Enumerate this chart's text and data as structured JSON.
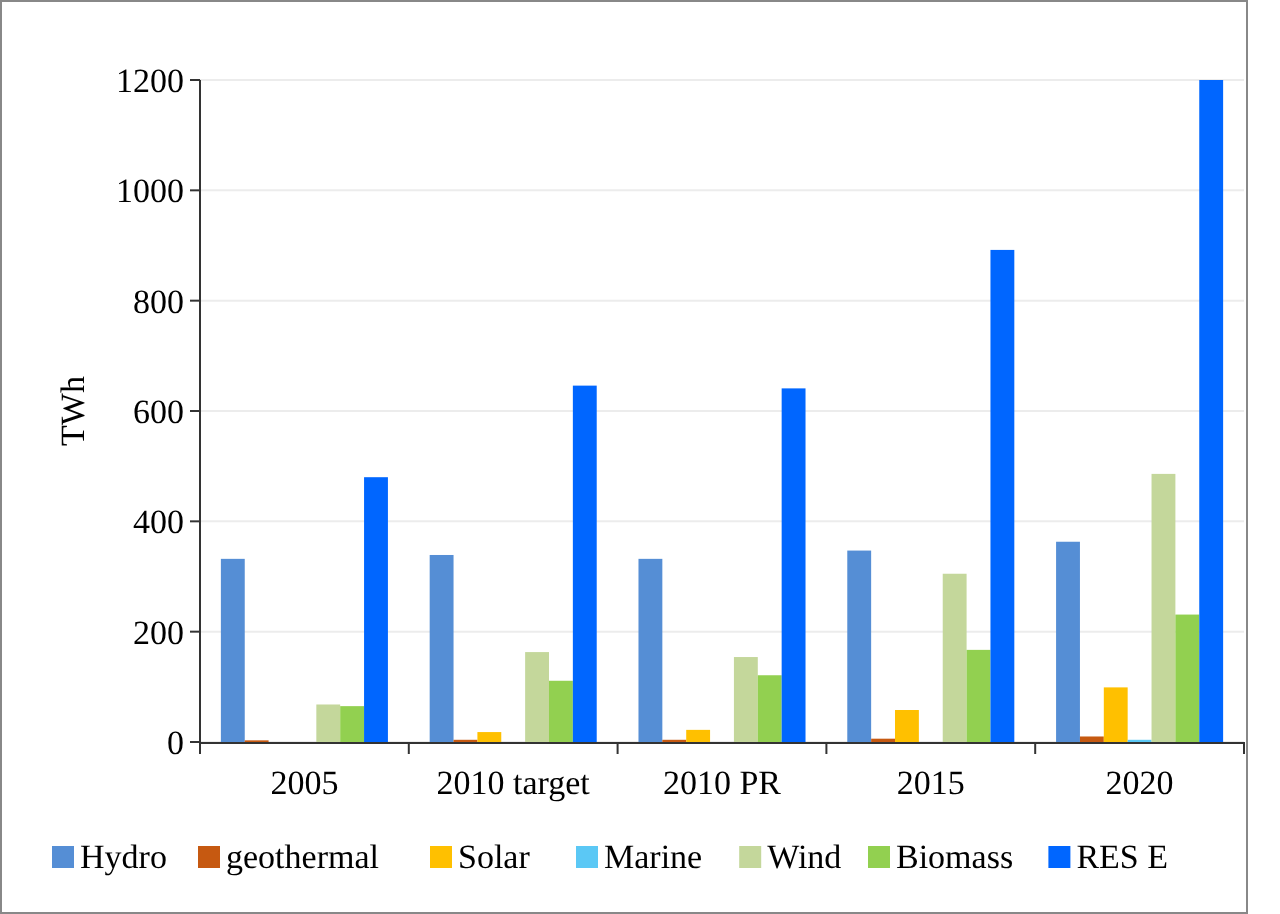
{
  "chart_data": {
    "type": "bar",
    "ylabel": "TWh",
    "categories": [
      "2005",
      "2010 target",
      "2010 PR",
      "2015",
      "2020"
    ],
    "series": [
      {
        "name": "Hydro",
        "color": "#558ed5",
        "values": [
          332,
          339,
          332,
          347,
          363
        ]
      },
      {
        "name": "geothermal",
        "color": "#c65911",
        "values": [
          3,
          4,
          4,
          6,
          10
        ]
      },
      {
        "name": "Solar",
        "color": "#ffc000",
        "values": [
          0,
          18,
          22,
          58,
          99
        ]
      },
      {
        "name": "Marine",
        "color": "#5bc8f5",
        "values": [
          0,
          0,
          0,
          0,
          4
        ]
      },
      {
        "name": "Wind",
        "color": "#c4d79b",
        "values": [
          68,
          163,
          154,
          305,
          486
        ]
      },
      {
        "name": "Biomass",
        "color": "#92d050",
        "values": [
          65,
          111,
          121,
          167,
          231
        ]
      },
      {
        "name": "RES E",
        "color": "#0066ff",
        "values": [
          480,
          646,
          641,
          892,
          1200
        ]
      }
    ],
    "ylim": [
      0,
      1200
    ],
    "yticks": [
      0,
      200,
      400,
      600,
      800,
      1000,
      1200
    ],
    "grid": "y",
    "legend": "bottom"
  }
}
